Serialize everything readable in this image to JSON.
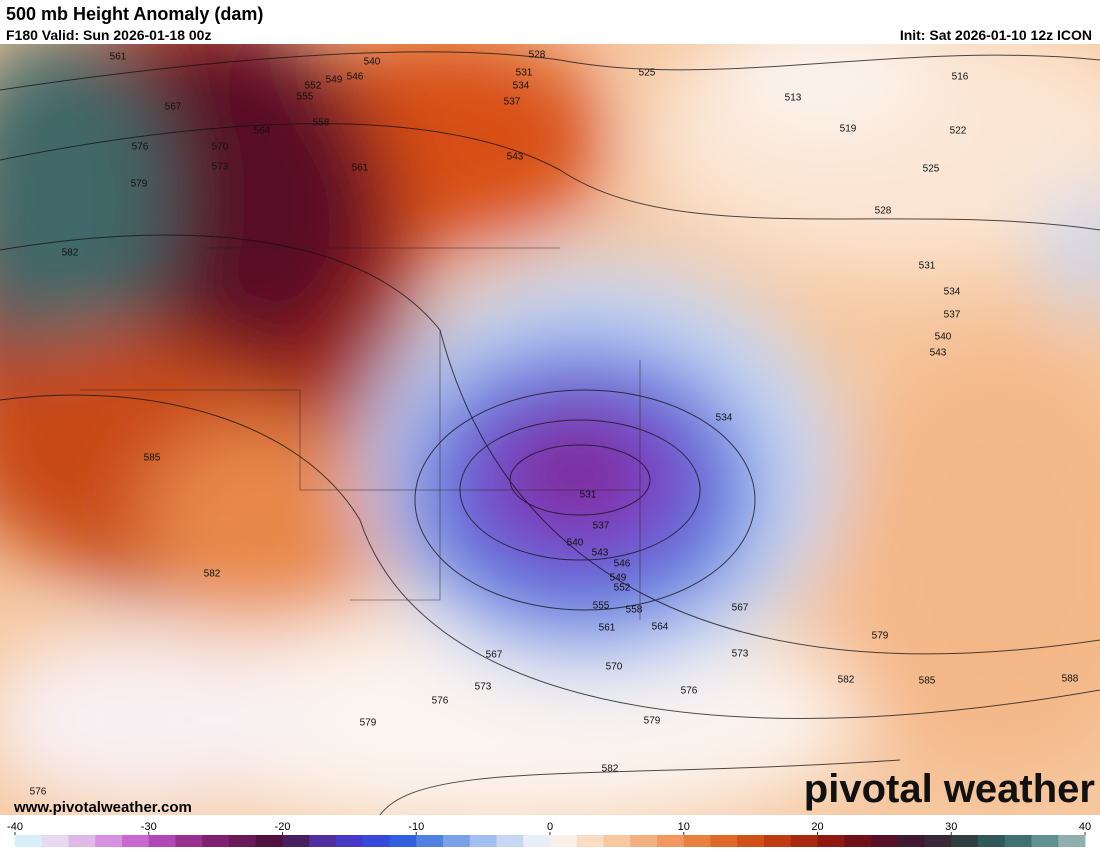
{
  "header": {
    "title": "500 mb Height Anomaly (dam)",
    "valid": "F180 Valid: Sun 2026-01-18 00z",
    "init": "Init: Sat 2026-01-10 12z ICON"
  },
  "map": {
    "contour_labels": [
      561,
      567,
      576,
      579,
      570,
      573,
      564,
      558,
      561,
      552,
      555,
      549,
      546,
      540,
      528,
      531,
      534,
      537,
      543,
      525,
      513,
      516,
      519,
      522,
      525,
      528,
      531,
      534,
      537,
      540,
      543,
      534,
      531,
      537,
      540,
      543,
      546,
      549,
      552,
      555,
      558,
      561,
      564,
      567,
      573,
      567,
      570,
      573,
      576,
      576,
      579,
      579,
      579,
      582,
      585,
      588,
      582,
      585,
      582,
      582,
      576
    ]
  },
  "watermark": {
    "url": "www.pivotalweather.com",
    "logo": "pivotal weather"
  },
  "colorbar": {
    "range": [
      -40,
      40
    ],
    "ticks": [
      -40,
      -30,
      -20,
      -10,
      0,
      10,
      20,
      30,
      40
    ],
    "colors": [
      "#d8eef8",
      "#e8d8f0",
      "#e0b8e8",
      "#d890e0",
      "#c868d0",
      "#b048b8",
      "#983090",
      "#802070",
      "#6a1858",
      "#501040",
      "#482060",
      "#5030a0",
      "#4838c8",
      "#3848d8",
      "#3060e0",
      "#5080e0",
      "#7aa0e8",
      "#a0bef0",
      "#c8d8f4",
      "#e8eef8",
      "#fbf0e8",
      "#f8dcc4",
      "#f8c8a0",
      "#f4b080",
      "#f09860",
      "#e88040",
      "#e06828",
      "#d05018",
      "#c03c10",
      "#a82810",
      "#901810",
      "#701018",
      "#581028",
      "#401830",
      "#382838",
      "#304040",
      "#305858",
      "#407070",
      "#609090",
      "#90b0b0"
    ]
  }
}
